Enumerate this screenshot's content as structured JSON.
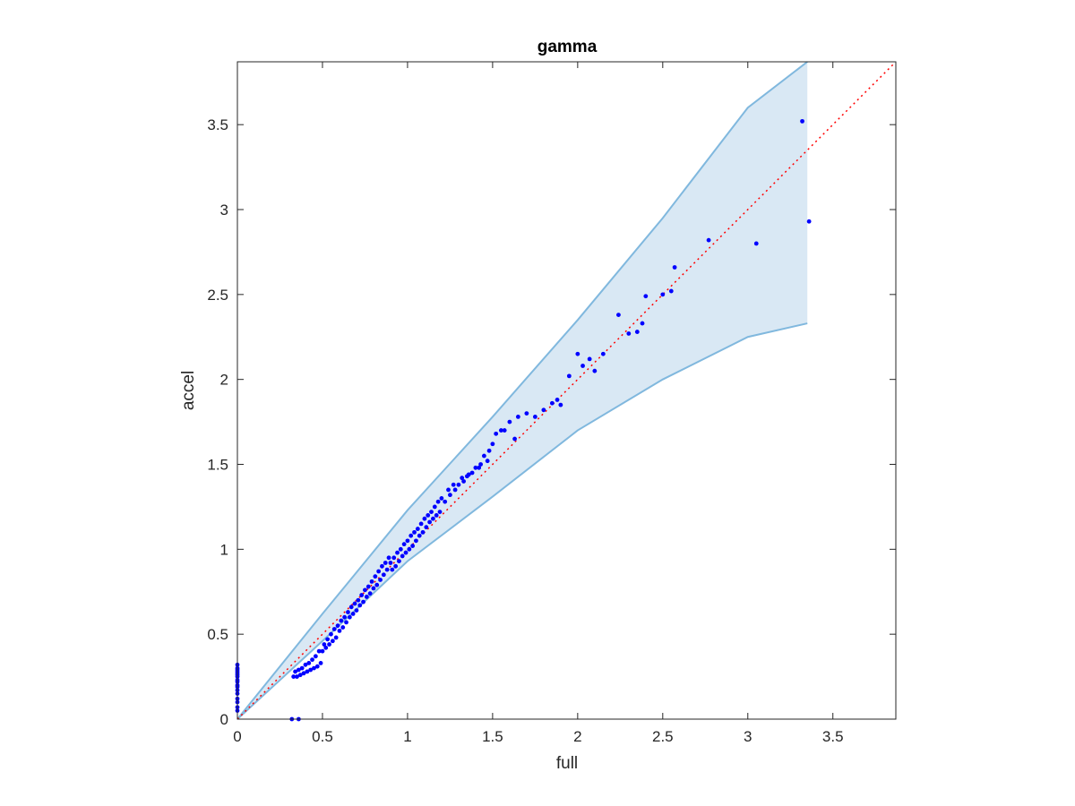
{
  "chart_data": {
    "type": "scatter",
    "title": "gamma",
    "xlabel": "full",
    "ylabel": "accel",
    "xlim": [
      0,
      3.87
    ],
    "ylim": [
      0,
      3.87
    ],
    "xticks": [
      0,
      0.5,
      1,
      1.5,
      2,
      2.5,
      3,
      3.5
    ],
    "yticks": [
      0,
      0.5,
      1,
      1.5,
      2,
      2.5,
      3,
      3.5
    ],
    "xtick_labels": [
      "0",
      "0.5",
      "1",
      "1.5",
      "2",
      "2.5",
      "3",
      "3.5"
    ],
    "ytick_labels": [
      "0",
      "0.5",
      "1",
      "1.5",
      "2",
      "2.5",
      "3",
      "3.5"
    ],
    "grid": false,
    "colors": {
      "points": "#0000ff",
      "reference_line": "#ff0000",
      "band_fill": "#d9e8f4",
      "band_edge": "#80b8de",
      "axis": "#262626"
    },
    "band": {
      "x": [
        0.0,
        0.5,
        1.0,
        1.5,
        2.0,
        2.5,
        3.0,
        3.35
      ],
      "upper": [
        0.0,
        0.62,
        1.23,
        1.78,
        2.35,
        2.95,
        3.6,
        3.87
      ],
      "lower": [
        0.0,
        0.46,
        0.93,
        1.31,
        1.7,
        2.0,
        2.25,
        2.33
      ]
    },
    "reference_line": {
      "x": [
        0,
        3.87
      ],
      "y": [
        0,
        3.87
      ],
      "style": "dotted"
    },
    "series": [
      {
        "x": [
          0,
          0,
          0,
          0,
          0,
          0,
          0,
          0,
          0,
          0,
          0,
          0,
          0,
          0,
          0,
          0,
          0,
          0.32,
          0.36,
          0.33,
          0.35,
          0.37,
          0.39,
          0.41,
          0.43,
          0.45,
          0.47,
          0.49,
          0.34,
          0.36,
          0.38,
          0.4,
          0.42,
          0.44,
          0.46,
          0.48,
          0.5,
          0.52,
          0.54,
          0.56,
          0.58,
          0.6,
          0.62,
          0.64,
          0.66,
          0.68,
          0.7,
          0.72,
          0.74,
          0.76,
          0.78,
          0.8,
          0.82,
          0.84,
          0.86,
          0.88,
          0.51,
          0.53,
          0.55,
          0.57,
          0.59,
          0.61,
          0.63,
          0.65,
          0.67,
          0.69,
          0.71,
          0.73,
          0.75,
          0.77,
          0.79,
          0.81,
          0.83,
          0.85,
          0.87,
          0.89,
          0.9,
          0.92,
          0.94,
          0.96,
          0.98,
          1.0,
          1.02,
          1.04,
          1.06,
          1.08,
          1.1,
          1.12,
          1.14,
          1.16,
          1.18,
          1.2,
          0.91,
          0.93,
          0.95,
          0.97,
          0.99,
          1.01,
          1.03,
          1.05,
          1.07,
          1.09,
          1.11,
          1.13,
          1.15,
          1.17,
          1.19,
          1.22,
          1.25,
          1.28,
          1.3,
          1.33,
          1.35,
          1.38,
          1.4,
          1.43,
          1.45,
          1.48,
          1.5,
          1.52,
          1.55,
          1.24,
          1.27,
          1.32,
          1.36,
          1.42,
          1.47,
          1.57,
          1.6,
          1.63,
          1.65,
          1.7,
          1.75,
          1.8,
          1.85,
          1.88,
          1.9,
          1.95,
          2.0,
          2.03,
          2.07,
          2.1,
          2.15,
          2.24,
          2.3,
          2.35,
          2.38,
          2.4,
          2.5,
          2.55,
          2.57,
          2.77,
          3.05,
          3.32,
          3.36
        ],
        "y": [
          0.05,
          0.07,
          0.1,
          0.12,
          0.15,
          0.17,
          0.19,
          0.2,
          0.22,
          0.23,
          0.25,
          0.26,
          0.27,
          0.28,
          0.29,
          0.3,
          0.32,
          0.0,
          0.0,
          0.25,
          0.25,
          0.26,
          0.27,
          0.28,
          0.29,
          0.3,
          0.31,
          0.33,
          0.28,
          0.29,
          0.3,
          0.32,
          0.33,
          0.35,
          0.37,
          0.4,
          0.4,
          0.42,
          0.44,
          0.46,
          0.48,
          0.52,
          0.54,
          0.57,
          0.6,
          0.62,
          0.64,
          0.67,
          0.69,
          0.72,
          0.74,
          0.77,
          0.79,
          0.82,
          0.85,
          0.88,
          0.44,
          0.47,
          0.5,
          0.53,
          0.55,
          0.58,
          0.6,
          0.63,
          0.66,
          0.68,
          0.7,
          0.73,
          0.76,
          0.78,
          0.81,
          0.84,
          0.87,
          0.9,
          0.92,
          0.95,
          0.92,
          0.95,
          0.98,
          1.0,
          1.03,
          1.05,
          1.08,
          1.1,
          1.12,
          1.15,
          1.18,
          1.2,
          1.22,
          1.25,
          1.28,
          1.3,
          0.88,
          0.9,
          0.93,
          0.96,
          0.98,
          1.0,
          1.02,
          1.05,
          1.08,
          1.1,
          1.13,
          1.16,
          1.18,
          1.2,
          1.22,
          1.28,
          1.32,
          1.35,
          1.38,
          1.4,
          1.43,
          1.45,
          1.48,
          1.5,
          1.55,
          1.58,
          1.62,
          1.68,
          1.7,
          1.35,
          1.38,
          1.42,
          1.44,
          1.48,
          1.52,
          1.7,
          1.75,
          1.65,
          1.78,
          1.8,
          1.78,
          1.82,
          1.86,
          1.88,
          1.85,
          2.02,
          2.15,
          2.08,
          2.12,
          2.05,
          2.15,
          2.38,
          2.27,
          2.28,
          2.33,
          2.49,
          2.5,
          2.52,
          2.66,
          2.82,
          2.8,
          3.52,
          2.93
        ]
      }
    ]
  }
}
